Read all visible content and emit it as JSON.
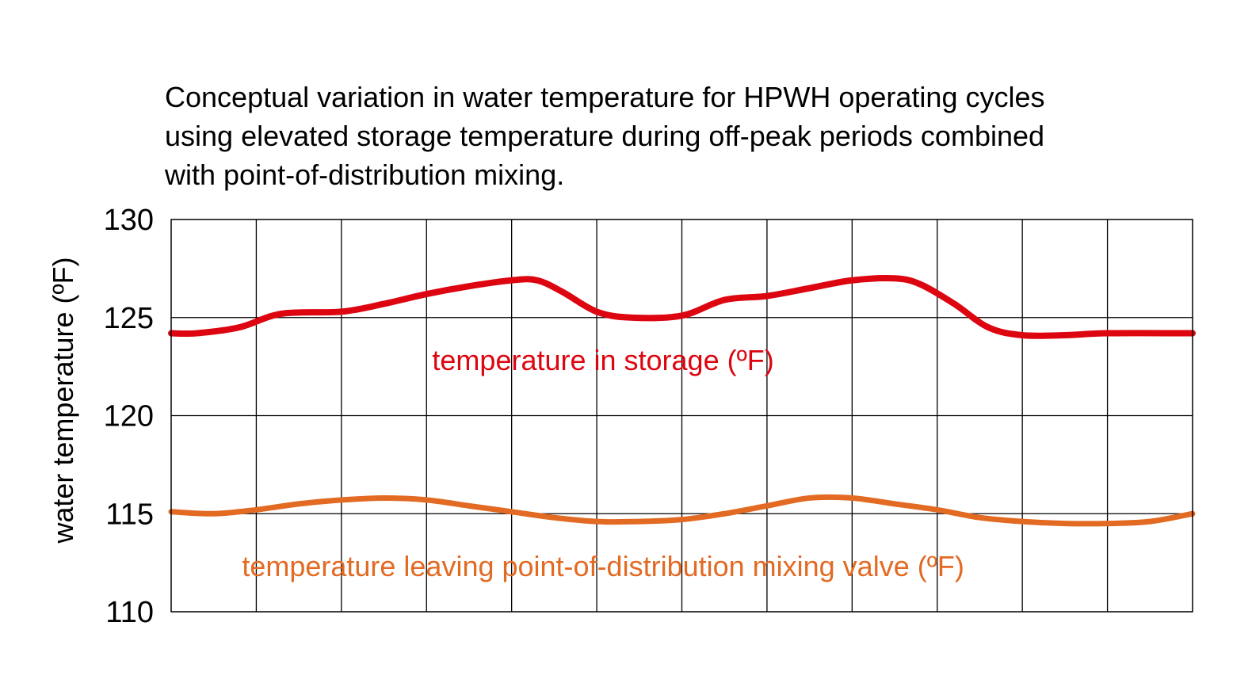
{
  "chart_data": {
    "type": "line",
    "title_lines": [
      "Conceptual variation in water temperature for HPWH operating cycles",
      "using elevated storage temperature during off-peak periods combined",
      "with point-of-distribution mixing."
    ],
    "ylabel": "water temperature (ºF)",
    "xlabel": "",
    "ylim": [
      110,
      130
    ],
    "yticks": [
      130,
      125,
      120,
      115,
      110
    ],
    "x_gridlines": 12,
    "xlim": [
      0,
      12
    ],
    "grid": true,
    "series": [
      {
        "name": "temperature in storage (ºF)",
        "color": "#dc0510",
        "x": [
          0,
          0.3,
          0.8,
          1.3,
          2.0,
          2.5,
          3.0,
          3.5,
          4.0,
          4.3,
          4.6,
          5.0,
          5.4,
          6.0,
          6.5,
          7.0,
          7.5,
          8.0,
          8.5,
          8.8,
          9.2,
          9.6,
          10.0,
          10.5,
          11.0,
          12.0
        ],
        "values": [
          124.2,
          124.2,
          124.5,
          125.2,
          125.3,
          125.7,
          126.2,
          126.6,
          126.9,
          126.9,
          126.3,
          125.3,
          125.0,
          125.1,
          125.9,
          126.1,
          126.5,
          126.9,
          127.0,
          126.7,
          125.7,
          124.5,
          124.1,
          124.1,
          124.2,
          124.2
        ]
      },
      {
        "name": "temperature leaving point-of-distribution mixing valve (ºF)",
        "color": "#e26a23",
        "x": [
          0,
          0.5,
          1.0,
          1.5,
          2.0,
          2.5,
          3.0,
          3.5,
          4.0,
          4.5,
          5.0,
          5.5,
          6.0,
          6.5,
          7.0,
          7.5,
          8.0,
          8.5,
          9.0,
          9.5,
          10.0,
          10.5,
          11.0,
          11.5,
          12.0
        ],
        "values": [
          115.1,
          115.0,
          115.2,
          115.5,
          115.7,
          115.8,
          115.7,
          115.4,
          115.1,
          114.8,
          114.6,
          114.6,
          114.7,
          115.0,
          115.4,
          115.8,
          115.8,
          115.5,
          115.2,
          114.8,
          114.6,
          114.5,
          114.5,
          114.6,
          115.0
        ]
      }
    ]
  }
}
